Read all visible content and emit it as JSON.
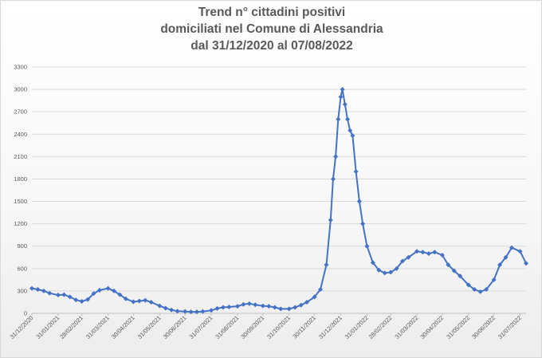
{
  "chart_data": {
    "type": "line",
    "title_lines": [
      "Trend n° cittadini positivi",
      "domiciliati nel Comune di Alessandria",
      "dal 31/12/2020 al 07/08/2022"
    ],
    "xlabel": "",
    "ylabel": "",
    "x_range": [
      "31/12/2020",
      "07/08/2022"
    ],
    "ylim": [
      0,
      3300
    ],
    "y_ticks": [
      0,
      300,
      600,
      900,
      1200,
      1500,
      1800,
      2100,
      2400,
      2700,
      3000,
      3300
    ],
    "x_ticks": [
      "31/12/2020",
      "31/01/2021",
      "28/02/2021",
      "31/03/2021",
      "30/04/2021",
      "31/05/2021",
      "30/06/2021",
      "31/07/2021",
      "31/08/2021",
      "30/09/2021",
      "31/10/2021",
      "30/11/2021",
      "31/12/2021",
      "31/01/2022",
      "28/02/2022",
      "31/03/2022",
      "30/04/2022",
      "31/05/2022",
      "30/06/2022",
      "31/07/2022"
    ],
    "grid": true,
    "legend": "none",
    "series": [
      {
        "color": "#4472c4",
        "points": [
          [
            "31/12/2020",
            335
          ],
          [
            "07/01/2021",
            320
          ],
          [
            "14/01/2021",
            300
          ],
          [
            "21/01/2021",
            270
          ],
          [
            "31/01/2021",
            245
          ],
          [
            "07/02/2021",
            250
          ],
          [
            "14/02/2021",
            220
          ],
          [
            "21/02/2021",
            180
          ],
          [
            "28/02/2021",
            160
          ],
          [
            "07/03/2021",
            185
          ],
          [
            "14/03/2021",
            265
          ],
          [
            "21/03/2021",
            310
          ],
          [
            "31/03/2021",
            335
          ],
          [
            "07/04/2021",
            300
          ],
          [
            "14/04/2021",
            250
          ],
          [
            "21/04/2021",
            195
          ],
          [
            "30/04/2021",
            155
          ],
          [
            "07/05/2021",
            165
          ],
          [
            "14/05/2021",
            175
          ],
          [
            "21/05/2021",
            150
          ],
          [
            "31/05/2021",
            100
          ],
          [
            "07/06/2021",
            70
          ],
          [
            "14/06/2021",
            45
          ],
          [
            "21/06/2021",
            30
          ],
          [
            "30/06/2021",
            25
          ],
          [
            "07/07/2021",
            20
          ],
          [
            "14/07/2021",
            20
          ],
          [
            "21/07/2021",
            25
          ],
          [
            "31/07/2021",
            40
          ],
          [
            "07/08/2021",
            65
          ],
          [
            "14/08/2021",
            80
          ],
          [
            "21/08/2021",
            85
          ],
          [
            "31/08/2021",
            95
          ],
          [
            "07/09/2021",
            120
          ],
          [
            "14/09/2021",
            130
          ],
          [
            "21/09/2021",
            115
          ],
          [
            "30/09/2021",
            100
          ],
          [
            "07/10/2021",
            95
          ],
          [
            "14/10/2021",
            80
          ],
          [
            "21/10/2021",
            60
          ],
          [
            "31/10/2021",
            60
          ],
          [
            "07/11/2021",
            80
          ],
          [
            "14/11/2021",
            110
          ],
          [
            "21/11/2021",
            150
          ],
          [
            "30/11/2021",
            220
          ],
          [
            "07/12/2021",
            320
          ],
          [
            "14/12/2021",
            650
          ],
          [
            "19/12/2021",
            1250
          ],
          [
            "22/12/2021",
            1800
          ],
          [
            "25/12/2021",
            2100
          ],
          [
            "28/12/2021",
            2600
          ],
          [
            "31/12/2021",
            2900
          ],
          [
            "02/01/2022",
            3000
          ],
          [
            "05/01/2022",
            2800
          ],
          [
            "08/01/2022",
            2600
          ],
          [
            "11/01/2022",
            2450
          ],
          [
            "14/01/2022",
            2380
          ],
          [
            "18/01/2022",
            1900
          ],
          [
            "22/01/2022",
            1500
          ],
          [
            "26/01/2022",
            1200
          ],
          [
            "31/01/2022",
            900
          ],
          [
            "07/02/2022",
            680
          ],
          [
            "14/02/2022",
            580
          ],
          [
            "21/02/2022",
            540
          ],
          [
            "28/02/2022",
            550
          ],
          [
            "07/03/2022",
            600
          ],
          [
            "14/03/2022",
            700
          ],
          [
            "21/03/2022",
            750
          ],
          [
            "31/03/2022",
            830
          ],
          [
            "07/04/2022",
            820
          ],
          [
            "14/04/2022",
            800
          ],
          [
            "21/04/2022",
            820
          ],
          [
            "30/04/2022",
            780
          ],
          [
            "07/05/2022",
            650
          ],
          [
            "14/05/2022",
            570
          ],
          [
            "21/05/2022",
            500
          ],
          [
            "31/05/2022",
            380
          ],
          [
            "07/06/2022",
            320
          ],
          [
            "14/06/2022",
            290
          ],
          [
            "21/06/2022",
            320
          ],
          [
            "30/06/2022",
            450
          ],
          [
            "07/07/2022",
            650
          ],
          [
            "14/07/2022",
            750
          ],
          [
            "21/07/2022",
            880
          ],
          [
            "31/07/2022",
            830
          ],
          [
            "07/08/2022",
            670
          ]
        ]
      }
    ]
  }
}
